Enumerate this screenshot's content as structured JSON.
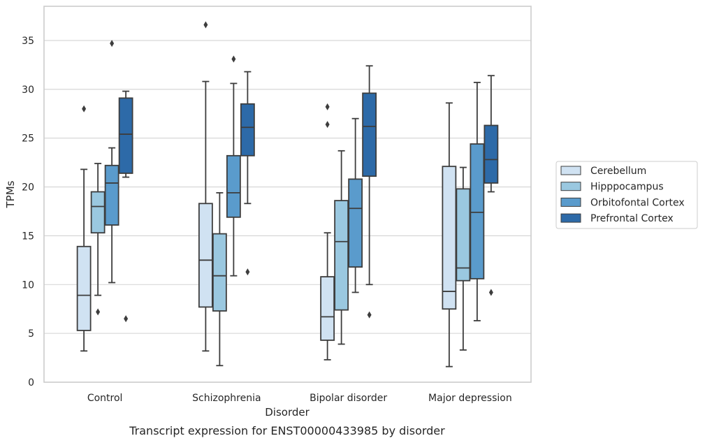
{
  "chart_data": {
    "type": "boxplot",
    "title": "",
    "caption": "Transcript expression for ENST00000433985 by disorder",
    "xlabel": "Disorder",
    "ylabel": "TPMs",
    "ylim": [
      0,
      38.5
    ],
    "yticks": [
      0,
      5,
      10,
      15,
      20,
      25,
      30,
      35
    ],
    "grid": true,
    "legend_placement": "right",
    "categories": [
      "Control",
      "Schizophrenia",
      "Bipolar disorder",
      "Major depression"
    ],
    "series": [
      {
        "name": "Cerebellum",
        "color": "#d0e2f2",
        "boxes": [
          {
            "whislo": 3.2,
            "q1": 5.3,
            "med": 8.9,
            "q3": 13.9,
            "whishi": 21.8,
            "fliers": [
              28.0
            ]
          },
          {
            "whislo": 3.2,
            "q1": 7.7,
            "med": 12.5,
            "q3": 18.3,
            "whishi": 30.8,
            "fliers": [
              36.6
            ]
          },
          {
            "whislo": 2.3,
            "q1": 4.3,
            "med": 6.7,
            "q3": 10.8,
            "whishi": 15.3,
            "fliers": [
              26.4,
              28.2
            ]
          },
          {
            "whislo": 1.6,
            "q1": 7.5,
            "med": 9.3,
            "q3": 22.1,
            "whishi": 28.6,
            "fliers": []
          }
        ]
      },
      {
        "name": "Hipppocampus",
        "color": "#9ac8e0",
        "boxes": [
          {
            "whislo": 8.9,
            "q1": 15.3,
            "med": 18.0,
            "q3": 19.5,
            "whishi": 22.4,
            "fliers": [
              7.2
            ]
          },
          {
            "whislo": 1.7,
            "q1": 7.3,
            "med": 10.9,
            "q3": 15.2,
            "whishi": 19.4,
            "fliers": []
          },
          {
            "whislo": 3.9,
            "q1": 7.4,
            "med": 14.4,
            "q3": 18.6,
            "whishi": 23.7,
            "fliers": []
          },
          {
            "whislo": 3.3,
            "q1": 10.4,
            "med": 11.7,
            "q3": 19.8,
            "whishi": 22.0,
            "fliers": []
          }
        ]
      },
      {
        "name": "Orbitofontal Cortex",
        "color": "#5a9bcc",
        "boxes": [
          {
            "whislo": 10.2,
            "q1": 16.1,
            "med": 20.4,
            "q3": 22.2,
            "whishi": 24.0,
            "fliers": [
              34.7
            ]
          },
          {
            "whislo": 10.9,
            "q1": 16.9,
            "med": 19.4,
            "q3": 23.2,
            "whishi": 30.6,
            "fliers": [
              33.1
            ]
          },
          {
            "whislo": 9.2,
            "q1": 11.8,
            "med": 17.8,
            "q3": 20.8,
            "whishi": 27.0,
            "fliers": []
          },
          {
            "whislo": 6.3,
            "q1": 10.6,
            "med": 17.4,
            "q3": 24.4,
            "whishi": 30.7,
            "fliers": []
          }
        ]
      },
      {
        "name": "Prefrontal Cortex",
        "color": "#2d6aa8",
        "boxes": [
          {
            "whislo": 21.0,
            "q1": 21.4,
            "med": 25.4,
            "q3": 29.1,
            "whishi": 29.8,
            "fliers": [
              6.5
            ]
          },
          {
            "whislo": 18.3,
            "q1": 23.2,
            "med": 26.1,
            "q3": 28.5,
            "whishi": 31.8,
            "fliers": [
              11.3
            ]
          },
          {
            "whislo": 10.0,
            "q1": 21.1,
            "med": 26.2,
            "q3": 29.6,
            "whishi": 32.4,
            "fliers": [
              6.9
            ]
          },
          {
            "whislo": 19.5,
            "q1": 20.4,
            "med": 22.8,
            "q3": 26.3,
            "whishi": 31.4,
            "fliers": [
              9.2
            ]
          }
        ]
      }
    ]
  }
}
